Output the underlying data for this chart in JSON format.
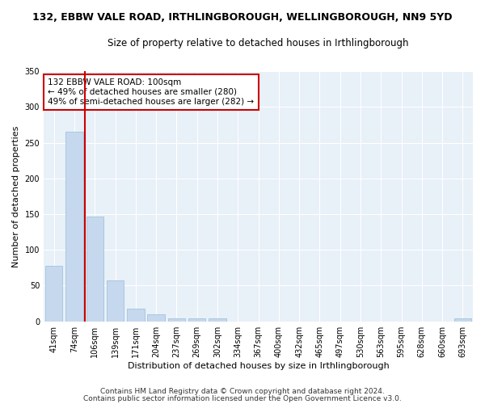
{
  "title": "132, EBBW VALE ROAD, IRTHLINGBOROUGH, WELLINGBOROUGH, NN9 5YD",
  "subtitle": "Size of property relative to detached houses in Irthlingborough",
  "xlabel": "Distribution of detached houses by size in Irthlingborough",
  "ylabel": "Number of detached properties",
  "categories": [
    "41sqm",
    "74sqm",
    "106sqm",
    "139sqm",
    "171sqm",
    "204sqm",
    "237sqm",
    "269sqm",
    "302sqm",
    "334sqm",
    "367sqm",
    "400sqm",
    "432sqm",
    "465sqm",
    "497sqm",
    "530sqm",
    "563sqm",
    "595sqm",
    "628sqm",
    "660sqm",
    "693sqm"
  ],
  "values": [
    78,
    265,
    147,
    57,
    18,
    10,
    4,
    4,
    4,
    0,
    0,
    0,
    0,
    0,
    0,
    0,
    0,
    0,
    0,
    0,
    4
  ],
  "bar_color": "#c5d8ed",
  "bar_edge_color": "#9bbdd6",
  "annotation_title": "132 EBBW VALE ROAD: 100sqm",
  "annotation_line1": "← 49% of detached houses are smaller (280)",
  "annotation_line2": "49% of semi-detached houses are larger (282) →",
  "annotation_box_color": "#ffffff",
  "annotation_box_edge": "#cc0000",
  "red_line_color": "#cc0000",
  "ylim": [
    0,
    350
  ],
  "yticks": [
    0,
    50,
    100,
    150,
    200,
    250,
    300,
    350
  ],
  "footer1": "Contains HM Land Registry data © Crown copyright and database right 2024.",
  "footer2": "Contains public sector information licensed under the Open Government Licence v3.0.",
  "fig_bg_color": "#ffffff",
  "plot_bg_color": "#e8f0f8",
  "grid_color": "#ffffff",
  "title_fontsize": 9,
  "subtitle_fontsize": 8.5,
  "label_fontsize": 8,
  "tick_fontsize": 7,
  "footer_fontsize": 6.5
}
